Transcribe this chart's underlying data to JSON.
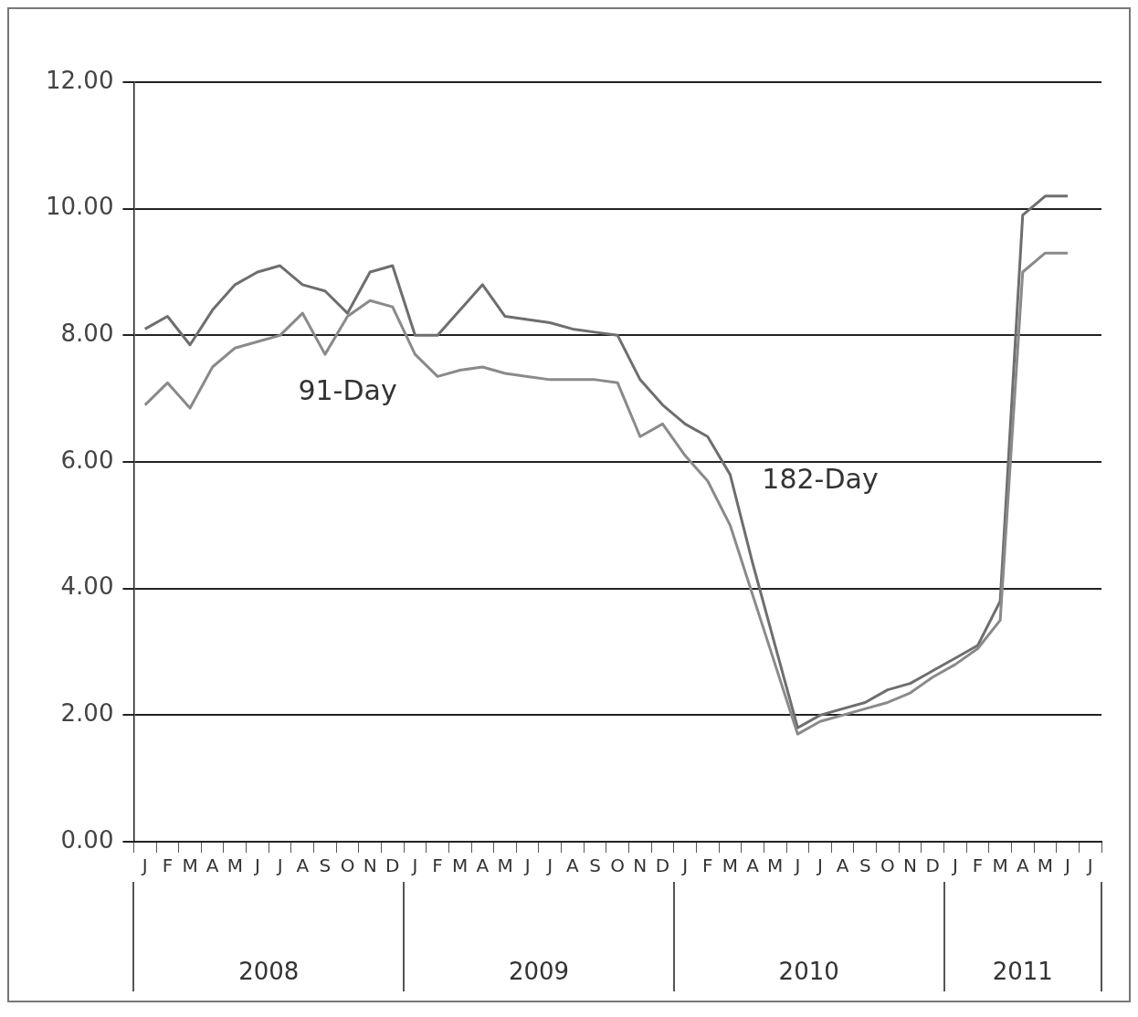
{
  "chart_data": {
    "type": "line",
    "categories": [
      "J",
      "F",
      "M",
      "A",
      "M",
      "J",
      "J",
      "A",
      "S",
      "O",
      "N",
      "D",
      "J",
      "F",
      "M",
      "A",
      "M",
      "J",
      "J",
      "A",
      "S",
      "O",
      "N",
      "D",
      "J",
      "F",
      "M",
      "A",
      "M",
      "J",
      "J",
      "A",
      "S",
      "O",
      "N",
      "D",
      "J",
      "F",
      "M",
      "A",
      "M",
      "J",
      "J"
    ],
    "series": [
      {
        "name": "91-Day",
        "color": "#8a8a8a",
        "values": [
          6.9,
          7.25,
          6.85,
          7.5,
          7.8,
          7.9,
          8.0,
          8.35,
          7.7,
          8.3,
          8.55,
          8.45,
          7.7,
          7.35,
          7.45,
          7.5,
          7.4,
          7.35,
          7.3,
          7.3,
          7.3,
          7.25,
          6.4,
          6.6,
          6.1,
          5.7,
          5.0,
          3.9,
          2.8,
          1.7,
          1.9,
          2.0,
          2.1,
          2.2,
          2.35,
          2.6,
          2.8,
          3.05,
          3.5,
          9.0,
          9.3,
          9.3,
          null
        ]
      },
      {
        "name": "182-Day",
        "color": "#6e6e6e",
        "values": [
          8.1,
          8.3,
          7.85,
          8.4,
          8.8,
          9.0,
          9.1,
          8.8,
          8.7,
          8.35,
          9.0,
          9.1,
          8.0,
          8.0,
          8.4,
          8.8,
          8.3,
          8.25,
          8.2,
          8.1,
          8.05,
          8.0,
          7.3,
          6.9,
          6.6,
          6.4,
          5.8,
          4.4,
          3.1,
          1.8,
          2.0,
          2.1,
          2.2,
          2.4,
          2.5,
          2.7,
          2.9,
          3.1,
          3.8,
          9.9,
          10.2,
          10.2,
          null
        ]
      }
    ],
    "ylim": [
      0,
      12
    ],
    "yticks": [
      {
        "value": 0,
        "label": "0.00"
      },
      {
        "value": 2,
        "label": "2.00"
      },
      {
        "value": 4,
        "label": "4.00"
      },
      {
        "value": 6,
        "label": "6.00"
      },
      {
        "value": 8,
        "label": "8.00"
      },
      {
        "value": 10,
        "label": "10.00"
      },
      {
        "value": 12,
        "label": "12.00"
      }
    ],
    "annotations": [
      "2008",
      "2009",
      "2010",
      "2011"
    ],
    "grid": "y",
    "legend": false,
    "marker": "none",
    "line_style": "solid"
  }
}
